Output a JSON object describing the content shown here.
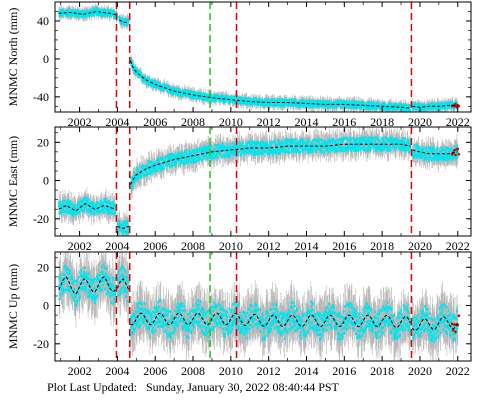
{
  "chart_data": [
    {
      "type": "scatter",
      "ylabel": "MNMC North (mm)",
      "ylim": [
        -56,
        60
      ],
      "yticks": [
        -40,
        0,
        40
      ],
      "xlim": [
        2000.7,
        2022.7
      ],
      "xticks": [
        2002,
        2004,
        2006,
        2008,
        2010,
        2012,
        2014,
        2016,
        2018,
        2020,
        2022
      ],
      "trend": {
        "segments": [
          {
            "x": [
              2000.9,
              2001.5,
              2002.2,
              2002.9,
              2003.6,
              2004.0
            ],
            "y": [
              48,
              49,
              47,
              50,
              48,
              46
            ]
          },
          {
            "x": [
              2004.1,
              2004.3,
              2004.6
            ],
            "y": [
              41,
              39,
              38
            ]
          },
          {
            "x": [
              2004.7,
              2004.8,
              2005.0,
              2005.5,
              2006,
              2007,
              2008,
              2009,
              2010,
              2011,
              2012,
              2013,
              2014,
              2015,
              2016,
              2017,
              2018,
              2019,
              2019.5
            ],
            "y": [
              -2,
              -8,
              -14,
              -22,
              -27,
              -34,
              -38,
              -41,
              -43,
              -45,
              -46,
              -46,
              -47,
              -48,
              -48,
              -49,
              -50,
              -51,
              -52
            ]
          },
          {
            "x": [
              2019.6,
              2020,
              2020.5,
              2021,
              2021.5,
              2022.0
            ],
            "y": [
              -50,
              -51,
              -50,
              -50,
              -49,
              -49
            ]
          }
        ],
        "scatter_halfwidth": 3.5
      },
      "vlines": [
        {
          "x": 2003.95,
          "color": "#e00000"
        },
        {
          "x": 2004.65,
          "color": "#e00000"
        },
        {
          "x": 2008.9,
          "color": "#22c322"
        },
        {
          "x": 2010.3,
          "color": "#e00000"
        },
        {
          "x": 2019.55,
          "color": "#e00000"
        }
      ]
    },
    {
      "type": "scatter",
      "ylabel": "MNMC East (mm)",
      "ylim": [
        -29,
        28
      ],
      "yticks": [
        -20,
        0,
        20
      ],
      "xlim": [
        2000.7,
        2022.7
      ],
      "xticks": [
        2002,
        2004,
        2006,
        2008,
        2010,
        2012,
        2014,
        2016,
        2018,
        2020,
        2022
      ],
      "trend": {
        "segments": [
          {
            "x": [
              2000.9,
              2001.3,
              2001.8,
              2002.3,
              2002.8,
              2003.3,
              2003.9
            ],
            "y": [
              -15,
              -13,
              -16,
              -12,
              -15,
              -13,
              -15
            ]
          },
          {
            "x": [
              2004.0,
              2004.3,
              2004.6
            ],
            "y": [
              -24,
              -25,
              -24
            ]
          },
          {
            "x": [
              2004.7,
              2004.8,
              2005.0,
              2005.5,
              2006,
              2007,
              2008,
              2009,
              2010,
              2011,
              2012,
              2013,
              2014,
              2015,
              2016,
              2017,
              2018,
              2019,
              2019.5
            ],
            "y": [
              -2,
              0,
              3,
              6,
              8,
              11,
              13,
              15,
              16,
              17,
              17,
              18,
              18,
              18,
              19,
              19,
              19,
              19,
              18
            ]
          },
          {
            "x": [
              2019.6,
              2020,
              2020.5,
              2021,
              2021.5,
              2022.0
            ],
            "y": [
              16,
              15,
              14,
              14,
              14,
              15
            ]
          }
        ],
        "scatter_halfwidth": 3.5
      },
      "vlines": [
        {
          "x": 2003.95,
          "color": "#e00000"
        },
        {
          "x": 2004.65,
          "color": "#e00000"
        },
        {
          "x": 2008.9,
          "color": "#22c322"
        },
        {
          "x": 2010.3,
          "color": "#e00000"
        },
        {
          "x": 2019.55,
          "color": "#e00000"
        }
      ]
    },
    {
      "type": "scatter",
      "ylabel": "MNMC Up (mm)",
      "ylim": [
        -29,
        28
      ],
      "yticks": [
        -20,
        0,
        20
      ],
      "xlim": [
        2000.7,
        2022.7
      ],
      "xticks": [
        2002,
        2004,
        2006,
        2008,
        2010,
        2012,
        2014,
        2016,
        2018,
        2020,
        2022
      ],
      "trend": {
        "segments": [
          {
            "x": [
              2000.9,
              2001.3,
              2001.8,
              2002.3,
              2002.8,
              2003.3,
              2003.9
            ],
            "y": [
              10,
              12,
              9,
              11,
              10,
              12,
              10
            ]
          },
          {
            "x": [
              2004.0,
              2004.3,
              2004.6
            ],
            "y": [
              9,
              11,
              10
            ]
          },
          {
            "x": [
              2004.7,
              2005.0,
              2006,
              2008,
              2010,
              2012,
              2014,
              2016,
              2018,
              2019.5
            ],
            "y": [
              -7,
              -7,
              -7,
              -7,
              -7,
              -8,
              -8,
              -8,
              -8,
              -9
            ]
          },
          {
            "x": [
              2019.6,
              2020,
              2020.5,
              2021,
              2021.5,
              2022.0
            ],
            "y": [
              -10,
              -10,
              -10,
              -9,
              -9,
              -9
            ]
          }
        ],
        "seasonal_amplitude": 3,
        "scatter_halfwidth": 7
      },
      "vlines": [
        {
          "x": 2003.95,
          "color": "#e00000"
        },
        {
          "x": 2004.65,
          "color": "#e00000"
        },
        {
          "x": 2008.9,
          "color": "#22c322"
        },
        {
          "x": 2010.3,
          "color": "#e00000"
        },
        {
          "x": 2019.55,
          "color": "#e00000"
        }
      ]
    }
  ],
  "colors": {
    "scatter": "#00e5ee",
    "error_bars": "#b8b8b8",
    "trend": "#000000",
    "recent_points": "#d40000"
  },
  "footer": {
    "label": "Plot Last Updated:",
    "value": "Sunday, January 30, 2022 08:40:44 PST"
  }
}
